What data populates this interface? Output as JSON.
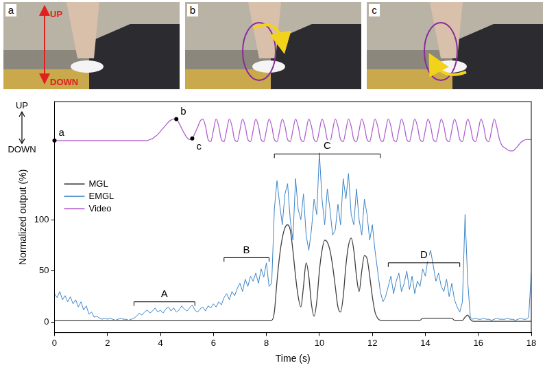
{
  "photos": {
    "panels": [
      "a",
      "b",
      "c"
    ],
    "arrow_labels": [
      "UP",
      "DOWN"
    ]
  },
  "chart_data": {
    "type": "line",
    "x_label": "Time (s)",
    "y_label": "Normalized output (%)",
    "xlim": [
      0,
      18
    ],
    "xticks": [
      0,
      2,
      4,
      6,
      8,
      10,
      12,
      14,
      16,
      18
    ],
    "ylim": [
      -10,
      215
    ],
    "yticks": [
      0,
      50,
      100
    ],
    "grid": false,
    "legend": "upper left",
    "x": [
      0,
      0.1,
      0.2,
      0.3,
      0.4,
      0.5,
      0.6,
      0.7,
      0.8,
      0.9,
      1,
      1.1,
      1.2,
      1.3,
      1.4,
      1.5,
      1.6,
      1.7,
      1.8,
      1.9,
      2,
      2.1,
      2.2,
      2.3,
      2.4,
      2.5,
      2.6,
      2.7,
      2.8,
      2.9,
      3,
      3.1,
      3.2,
      3.3,
      3.4,
      3.5,
      3.6,
      3.7,
      3.8,
      3.9,
      4,
      4.1,
      4.2,
      4.3,
      4.4,
      4.5,
      4.6,
      4.7,
      4.8,
      4.9,
      5,
      5.1,
      5.2,
      5.3,
      5.4,
      5.5,
      5.6,
      5.7,
      5.8,
      5.9,
      6,
      6.1,
      6.2,
      6.3,
      6.4,
      6.5,
      6.6,
      6.7,
      6.8,
      6.9,
      7,
      7.1,
      7.2,
      7.3,
      7.4,
      7.5,
      7.6,
      7.7,
      7.8,
      7.9,
      8,
      8.1,
      8.2,
      8.3,
      8.4,
      8.5,
      8.6,
      8.7,
      8.8,
      8.9,
      9,
      9.1,
      9.2,
      9.3,
      9.4,
      9.5,
      9.6,
      9.7,
      9.8,
      9.9,
      10,
      10.1,
      10.2,
      10.3,
      10.4,
      10.5,
      10.6,
      10.7,
      10.8,
      10.9,
      11,
      11.1,
      11.2,
      11.3,
      11.4,
      11.5,
      11.6,
      11.7,
      11.8,
      11.9,
      12,
      12.1,
      12.2,
      12.3,
      12.4,
      12.5,
      12.6,
      12.7,
      12.8,
      12.9,
      13,
      13.1,
      13.2,
      13.3,
      13.4,
      13.5,
      13.6,
      13.7,
      13.8,
      13.9,
      14,
      14.1,
      14.2,
      14.3,
      14.4,
      14.5,
      14.6,
      14.7,
      14.8,
      14.9,
      15,
      15.1,
      15.2,
      15.3,
      15.4,
      15.5,
      15.6,
      15.7,
      15.8,
      15.9,
      16,
      16.1,
      16.2,
      16.3,
      16.4,
      16.5,
      16.6,
      16.7,
      16.8,
      16.9,
      17,
      17.1,
      17.2,
      17.3,
      17.4,
      17.5,
      17.6,
      17.7,
      17.8,
      17.9,
      18
    ],
    "series": [
      {
        "name": "MGL",
        "color": "#404040",
        "values": [
          2,
          2,
          2,
          2,
          2,
          2,
          2,
          2,
          2,
          2,
          2,
          2,
          2,
          2,
          2,
          2,
          2,
          2,
          2,
          2,
          2,
          2,
          2,
          2,
          2,
          2,
          2,
          2,
          2,
          2,
          2,
          2,
          2,
          2,
          2,
          2,
          2,
          2,
          2,
          2,
          2,
          2,
          2,
          2,
          2,
          2,
          2,
          2,
          2,
          2,
          2,
          2,
          2,
          2,
          2,
          2,
          2,
          2,
          2,
          2,
          2,
          2,
          2,
          2,
          2,
          2,
          2,
          2,
          2,
          2,
          2,
          2,
          2,
          2,
          2,
          2,
          2,
          2,
          2,
          2,
          2,
          2,
          2,
          10,
          40,
          65,
          82,
          92,
          95,
          90,
          70,
          45,
          25,
          15,
          35,
          58,
          45,
          18,
          6,
          20,
          50,
          70,
          80,
          78,
          70,
          55,
          35,
          15,
          10,
          25,
          55,
          75,
          82,
          70,
          45,
          30,
          50,
          65,
          62,
          45,
          25,
          10,
          4,
          2,
          2,
          2,
          2,
          2,
          2,
          2,
          2,
          2,
          2,
          2,
          2,
          2,
          2,
          2,
          2,
          4,
          4,
          4,
          4,
          4,
          4,
          4,
          4,
          4,
          4,
          4,
          4,
          2,
          2,
          2,
          2,
          5,
          7,
          3,
          1,
          1,
          1,
          1,
          1,
          1,
          1,
          1,
          1,
          1,
          1,
          1,
          1,
          1,
          1,
          1,
          1,
          1,
          1,
          1,
          1,
          1,
          1
        ]
      },
      {
        "name": "EMGL",
        "color": "#3d85c6",
        "values": [
          28,
          24,
          30,
          22,
          26,
          20,
          25,
          18,
          22,
          15,
          20,
          12,
          16,
          8,
          10,
          5,
          6,
          4,
          3,
          4,
          3,
          4,
          3,
          2,
          3,
          4,
          3,
          3,
          2,
          3,
          4,
          6,
          9,
          7,
          10,
          12,
          9,
          11,
          14,
          10,
          12,
          9,
          13,
          15,
          11,
          14,
          10,
          12,
          16,
          13,
          11,
          14,
          17,
          12,
          10,
          13,
          15,
          11,
          16,
          14,
          18,
          15,
          20,
          17,
          24,
          28,
          22,
          30,
          26,
          33,
          38,
          30,
          42,
          35,
          45,
          40,
          48,
          38,
          52,
          44,
          58,
          35,
          38,
          110,
          138,
          115,
          95,
          125,
          135,
          100,
          80,
          140,
          110,
          100,
          125,
          85,
          70,
          90,
          120,
          105,
          165,
          120,
          95,
          130,
          110,
          85,
          90,
          115,
          95,
          140,
          120,
          145,
          105,
          95,
          130,
          100,
          85,
          120,
          105,
          80,
          95,
          70,
          50,
          30,
          20,
          25,
          35,
          45,
          28,
          40,
          48,
          30,
          38,
          50,
          32,
          45,
          28,
          40,
          35,
          52,
          45,
          62,
          70,
          55,
          40,
          48,
          35,
          30,
          42,
          25,
          38,
          22,
          15,
          10,
          20,
          105,
          40,
          5,
          3,
          4,
          3,
          3,
          4,
          3,
          3,
          2,
          3,
          4,
          3,
          3,
          3,
          4,
          3,
          3,
          2,
          3,
          4,
          3,
          3,
          5,
          48
        ]
      },
      {
        "name": "Video",
        "color": "#b060d0",
        "values": [
          177,
          177,
          177,
          177,
          177,
          177,
          177,
          177,
          177,
          177,
          177,
          177,
          177,
          177,
          177,
          177,
          177,
          177,
          177,
          177,
          177,
          177,
          177,
          177,
          177,
          177,
          177,
          177,
          177,
          177,
          177,
          177,
          177,
          177,
          177,
          177,
          178,
          179,
          181,
          183,
          186,
          189,
          192,
          195,
          197,
          198,
          198,
          194,
          189,
          184,
          180,
          178,
          179,
          184,
          190,
          196,
          198,
          191,
          178,
          176,
          187,
          198,
          191,
          178,
          176,
          187,
          198,
          191,
          178,
          176,
          187,
          198,
          191,
          178,
          176,
          187,
          198,
          191,
          178,
          176,
          187,
          198,
          191,
          178,
          176,
          187,
          198,
          191,
          178,
          176,
          187,
          198,
          191,
          178,
          176,
          187,
          198,
          191,
          178,
          176,
          187,
          198,
          191,
          178,
          176,
          187,
          198,
          191,
          178,
          176,
          187,
          198,
          191,
          178,
          176,
          187,
          198,
          191,
          178,
          176,
          187,
          198,
          191,
          178,
          176,
          187,
          198,
          191,
          178,
          176,
          187,
          198,
          191,
          178,
          176,
          187,
          198,
          191,
          178,
          176,
          187,
          198,
          191,
          178,
          176,
          187,
          198,
          191,
          178,
          176,
          187,
          198,
          191,
          178,
          176,
          187,
          198,
          191,
          178,
          176,
          187,
          198,
          191,
          178,
          176,
          187,
          198,
          190,
          178,
          172,
          170,
          168,
          167,
          167,
          169,
          172,
          175,
          177,
          178,
          178,
          178
        ]
      }
    ],
    "annotations": {
      "direction": [
        "UP",
        "DOWN"
      ],
      "points": [
        {
          "label": "a",
          "x": 0,
          "y": 177
        },
        {
          "label": "b",
          "x": 4.6,
          "y": 198
        },
        {
          "label": "c",
          "x": 5.2,
          "y": 179
        }
      ],
      "brackets": [
        {
          "label": "A",
          "x": [
            3,
            5.3
          ],
          "y": 20
        },
        {
          "label": "B",
          "x": [
            6.4,
            8.1
          ],
          "y": 63
        },
        {
          "label": "C",
          "x": [
            8.3,
            12.3
          ],
          "y": 164
        },
        {
          "label": "D",
          "x": [
            12.6,
            15.3
          ],
          "y": 58
        }
      ]
    }
  }
}
